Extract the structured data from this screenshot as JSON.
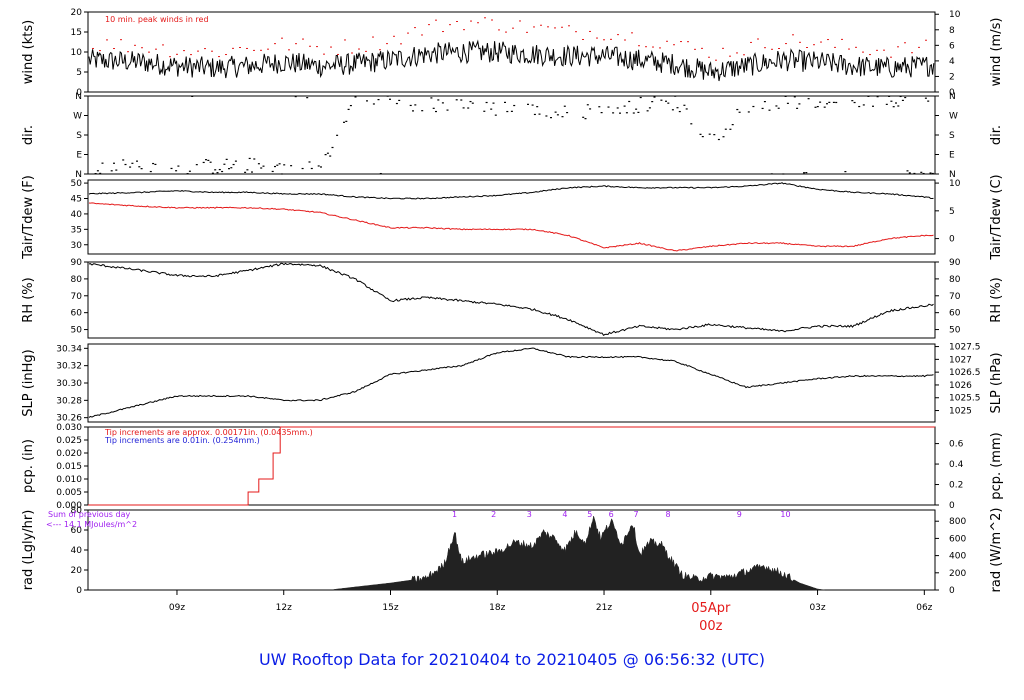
{
  "page": {
    "title": "UW Rooftop Data for 20210404  to  20210405 @ 06:56:32  (UTC)",
    "colors": {
      "black": "#000000",
      "red": "#e41a1a",
      "blue": "#1f1fd6",
      "purple": "#a020f0",
      "title": "#0b1ee6"
    }
  },
  "chart_data": {
    "type": "line",
    "time_axis": {
      "unit": "hours UTC since 2021-04-04 00z",
      "range": [
        6.5,
        30.3
      ],
      "ticks": [
        {
          "t": 9,
          "label": "09z"
        },
        {
          "t": 12,
          "label": "12z"
        },
        {
          "t": 15,
          "label": "15z"
        },
        {
          "t": 18,
          "label": "18z"
        },
        {
          "t": 21,
          "label": "21z"
        },
        {
          "t": 24,
          "label": "05Apr\n00z",
          "highlight": true
        },
        {
          "t": 27,
          "label": "03z"
        },
        {
          "t": 30,
          "label": "06z"
        }
      ],
      "date_label": "05Apr",
      "date_time": "00z"
    },
    "panels": [
      {
        "id": "wind",
        "left_label": "wind (kts)",
        "right_label": "wind (m/s)",
        "ylim": [
          0,
          20
        ],
        "left_ticks": [
          "0",
          "5",
          "10",
          "15",
          "20"
        ],
        "right_ticks": [
          "0",
          "2",
          "4",
          "6",
          "8",
          "10"
        ],
        "note": "10 min. peak winds in red",
        "series": [
          {
            "name": "wind speed",
            "color": "#000000",
            "t": [
              6.5,
              8,
              9,
              10,
              11,
              12,
              13,
              14,
              15,
              16,
              17,
              18,
              19,
              20,
              21,
              22,
              23,
              24,
              25,
              26,
              27,
              28,
              29,
              30,
              30.3
            ],
            "y": [
              8,
              7.5,
              6.5,
              6,
              6.5,
              7.5,
              6.5,
              7,
              8,
              9.5,
              10,
              10,
              9.5,
              9,
              9,
              8,
              7,
              5,
              6.5,
              8,
              7.5,
              6.5,
              6,
              6.5,
              7
            ]
          },
          {
            "name": "10 min peak",
            "color": "#e41a1a",
            "t": [
              6.5,
              8,
              9,
              10,
              11,
              12,
              13,
              14,
              15,
              16,
              17,
              18,
              19,
              20,
              21,
              22,
              23,
              24,
              25,
              26,
              27,
              28,
              29,
              30,
              30.3
            ],
            "y": [
              12,
              11.5,
              10.5,
              10,
              11,
              12,
              11,
              11.5,
              13,
              16,
              17.5,
              17,
              16,
              15,
              15,
              13.5,
              12,
              9.5,
              11,
              13,
              12,
              11,
              10.5,
              11,
              11.5
            ]
          }
        ]
      },
      {
        "id": "dir",
        "left_label": "dir.",
        "right_label": "dir.",
        "ylim": [
          0,
          360
        ],
        "left_ticks": [
          "N",
          "E",
          "S",
          "W",
          "N"
        ],
        "right_ticks": [
          "N",
          "E",
          "S",
          "W",
          "N"
        ],
        "series": [
          {
            "name": "direction",
            "color": "#000000",
            "t": [
              6.5,
              8,
              9,
              10,
              11,
              12,
              13,
              14,
              15,
              16,
              17,
              18,
              19,
              20,
              21,
              22,
              23,
              24,
              25,
              26,
              27,
              28,
              29,
              30,
              30.3
            ],
            "y": [
              20,
              40,
              30,
              35,
              40,
              30,
              25,
              340,
              330,
              320,
              310,
              300,
              290,
              280,
              300,
              320,
              330,
              150,
              320,
              330,
              335,
              340,
              345,
              350,
              340
            ]
          }
        ]
      },
      {
        "id": "temp",
        "left_label": "Tair/Tdew (F)",
        "right_label": "Tair/Tdew (C)",
        "ylim": [
          27,
          51
        ],
        "left_ticks": [
          "30",
          "35",
          "40",
          "45",
          "50"
        ],
        "right_ticks": [
          "0",
          "5",
          "10"
        ],
        "series": [
          {
            "name": "Tair",
            "color": "#000000",
            "t": [
              6.5,
              8,
              9,
              10,
              11,
              12,
              13,
              14,
              15,
              16,
              17,
              18,
              19,
              20,
              21,
              22,
              23,
              24,
              25,
              26,
              27,
              28,
              29,
              30,
              30.3
            ],
            "y": [
              46.5,
              47,
              47.5,
              47,
              47,
              46.5,
              46.5,
              45.5,
              45,
              45,
              45.5,
              46,
              47,
              48.5,
              49,
              48.5,
              48.5,
              48.5,
              49,
              50,
              48,
              47,
              46.5,
              45.5,
              45
            ]
          },
          {
            "name": "Tdew",
            "color": "#e41a1a",
            "t": [
              6.5,
              8,
              9,
              10,
              11,
              12,
              13,
              14,
              15,
              16,
              17,
              18,
              19,
              20,
              21,
              22,
              23,
              24,
              25,
              26,
              27,
              28,
              29,
              30,
              30.3
            ],
            "y": [
              43.5,
              42.5,
              42,
              42,
              42,
              41.5,
              40.5,
              38,
              35.5,
              35.5,
              35,
              35,
              35,
              33,
              29,
              30.5,
              28,
              29.5,
              30.5,
              30.5,
              29.5,
              29.5,
              32,
              33,
              33
            ]
          }
        ]
      },
      {
        "id": "rh",
        "left_label": "RH (%)",
        "right_label": "RH (%)",
        "ylim": [
          45,
          90
        ],
        "left_ticks": [
          "50",
          "60",
          "70",
          "80",
          "90"
        ],
        "right_ticks": [
          "50",
          "60",
          "70",
          "80",
          "90"
        ],
        "series": [
          {
            "name": "RH",
            "color": "#000000",
            "t": [
              6.5,
              8,
              9,
              10,
              11,
              12,
              13,
              14,
              15,
              16,
              17,
              18,
              19,
              20,
              21,
              22,
              23,
              24,
              25,
              26,
              27,
              28,
              29,
              30,
              30.3
            ],
            "y": [
              89,
              85,
              82,
              81.5,
              85,
              89,
              88,
              80,
              67,
              69,
              67,
              65,
              62,
              56,
              47,
              52,
              50,
              53,
              51,
              49,
              52,
              52,
              61,
              64,
              65
            ]
          }
        ]
      },
      {
        "id": "slp",
        "left_label": "SLP (inHg)",
        "right_label": "SLP (hPa)",
        "ylim": [
          30.255,
          30.345
        ],
        "left_ticks": [
          "30.26",
          "30.28",
          "30.30",
          "30.32",
          "30.34"
        ],
        "right_ticks": [
          "1025",
          "1025.5",
          "1026",
          "1026.5",
          "1027",
          "1027.5"
        ],
        "series": [
          {
            "name": "SLP",
            "color": "#000000",
            "t": [
              6.5,
              8,
              9,
              10,
              11,
              12,
              13,
              14,
              15,
              16,
              17,
              18,
              19,
              20,
              21,
              22,
              23,
              24,
              25,
              26,
              27,
              28,
              29,
              30,
              30.3
            ],
            "y": [
              30.26,
              30.275,
              30.285,
              30.285,
              30.285,
              30.28,
              30.28,
              30.29,
              30.31,
              30.315,
              30.32,
              30.335,
              30.34,
              30.33,
              30.33,
              30.33,
              30.325,
              30.31,
              30.295,
              30.3,
              30.305,
              30.308,
              30.308,
              30.308,
              30.31
            ]
          }
        ]
      },
      {
        "id": "pcp",
        "left_label": "pcp. (in)",
        "right_label": "pcp. (mm)",
        "ylim": [
          0,
          0.03
        ],
        "left_ticks": [
          "0.000",
          "0.005",
          "0.010",
          "0.015",
          "0.020",
          "0.025",
          "0.030"
        ],
        "right_ticks": [
          "0",
          "0.2",
          "0.4",
          "0.6"
        ],
        "notes": [
          {
            "text": "Tip increments are approx. 0.00171in. (0.0435mm.)",
            "color": "#e41a1a"
          },
          {
            "text": "Tip increments are 0.01in. (0.254mm.)",
            "color": "#1f1fd6"
          }
        ],
        "series": [
          {
            "name": "accum (approx tips)",
            "color": "#e41a1a",
            "t": [
              6.5,
              10.8,
              11.0,
              11.0,
              11.3,
              11.3,
              11.7,
              11.7,
              11.9,
              11.9,
              30.3
            ],
            "y": [
              0,
              0,
              0,
              0.005,
              0.005,
              0.01,
              0.01,
              0.02,
              0.02,
              0.03,
              0.03
            ]
          }
        ]
      },
      {
        "id": "rad",
        "left_label": "rad (Lgly/hr)",
        "right_label": "rad (W/m^2)",
        "ylim": [
          0,
          80
        ],
        "left_ticks": [
          "0",
          "20",
          "40",
          "60",
          "80"
        ],
        "right_ticks": [
          "0",
          "200",
          "400",
          "600",
          "800"
        ],
        "note_lines": [
          "Sum of previous day",
          "<--- 14.1 MJoules/m^2"
        ],
        "hour_marks": [
          {
            "t": 16.8,
            "label": "1"
          },
          {
            "t": 17.9,
            "label": "2"
          },
          {
            "t": 18.9,
            "label": "3"
          },
          {
            "t": 19.9,
            "label": "4"
          },
          {
            "t": 20.6,
            "label": "5"
          },
          {
            "t": 21.2,
            "label": "6"
          },
          {
            "t": 21.9,
            "label": "7"
          },
          {
            "t": 22.8,
            "label": "8"
          },
          {
            "t": 24.8,
            "label": "9"
          },
          {
            "t": 26.1,
            "label": "10"
          }
        ],
        "series": [
          {
            "name": "radiation",
            "color": "#222222",
            "t": [
              13.4,
              14,
              15,
              16,
              16.5,
              16.8,
              17,
              17.5,
              18,
              18.5,
              19,
              19.3,
              19.6,
              19.9,
              20.2,
              20.5,
              20.7,
              20.9,
              21.2,
              21.5,
              21.8,
              22,
              22.3,
              22.6,
              22.9,
              23.2,
              23.6,
              24,
              24.5,
              25,
              25.5,
              26,
              26.5,
              27,
              27.2
            ],
            "y": [
              0.5,
              3,
              7,
              12,
              25,
              58,
              28,
              35,
              38,
              48,
              44,
              58,
              52,
              40,
              58,
              48,
              74,
              52,
              69,
              46,
              68,
              36,
              48,
              46,
              30,
              15,
              11,
              14,
              13,
              19,
              24,
              17,
              7,
              1,
              0
            ]
          }
        ]
      }
    ]
  }
}
